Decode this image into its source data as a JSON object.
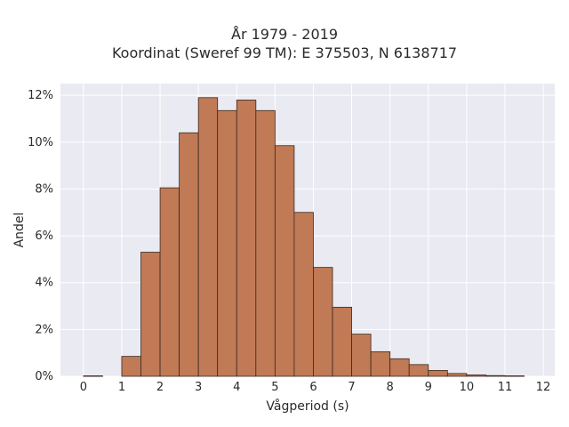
{
  "chart_data": {
    "type": "bar",
    "title": "År 1979 - 2019",
    "subtitle": "Koordinat (Sweref 99 TM): E 375503, N 6138717",
    "xlabel": "Vågperiod (s)",
    "ylabel": "Andel",
    "xlim": [
      -0.6,
      12.3
    ],
    "ylim": [
      0,
      12.5
    ],
    "x_ticks": [
      0,
      1,
      2,
      3,
      4,
      5,
      6,
      7,
      8,
      9,
      10,
      11,
      12
    ],
    "y_ticks": [
      0,
      2,
      4,
      6,
      8,
      10,
      12
    ],
    "y_tick_suffix": "%",
    "bin_width": 0.5,
    "bins_left_edges": [
      0,
      1,
      1.5,
      2,
      2.5,
      3,
      3.5,
      4,
      4.5,
      5,
      5.5,
      6,
      6.5,
      7,
      7.5,
      8,
      8.5,
      9,
      9.5,
      10,
      10.5,
      11
    ],
    "values": [
      0.02,
      0.85,
      5.3,
      8.05,
      10.4,
      11.9,
      11.35,
      11.8,
      11.35,
      9.85,
      7.0,
      4.65,
      2.95,
      1.8,
      1.05,
      0.75,
      0.5,
      0.25,
      0.12,
      0.06,
      0.03,
      0.02
    ],
    "grid": true,
    "bar_color": "#c07a55",
    "edge_color": "#3a2a20",
    "background": "#eaeaf2"
  }
}
